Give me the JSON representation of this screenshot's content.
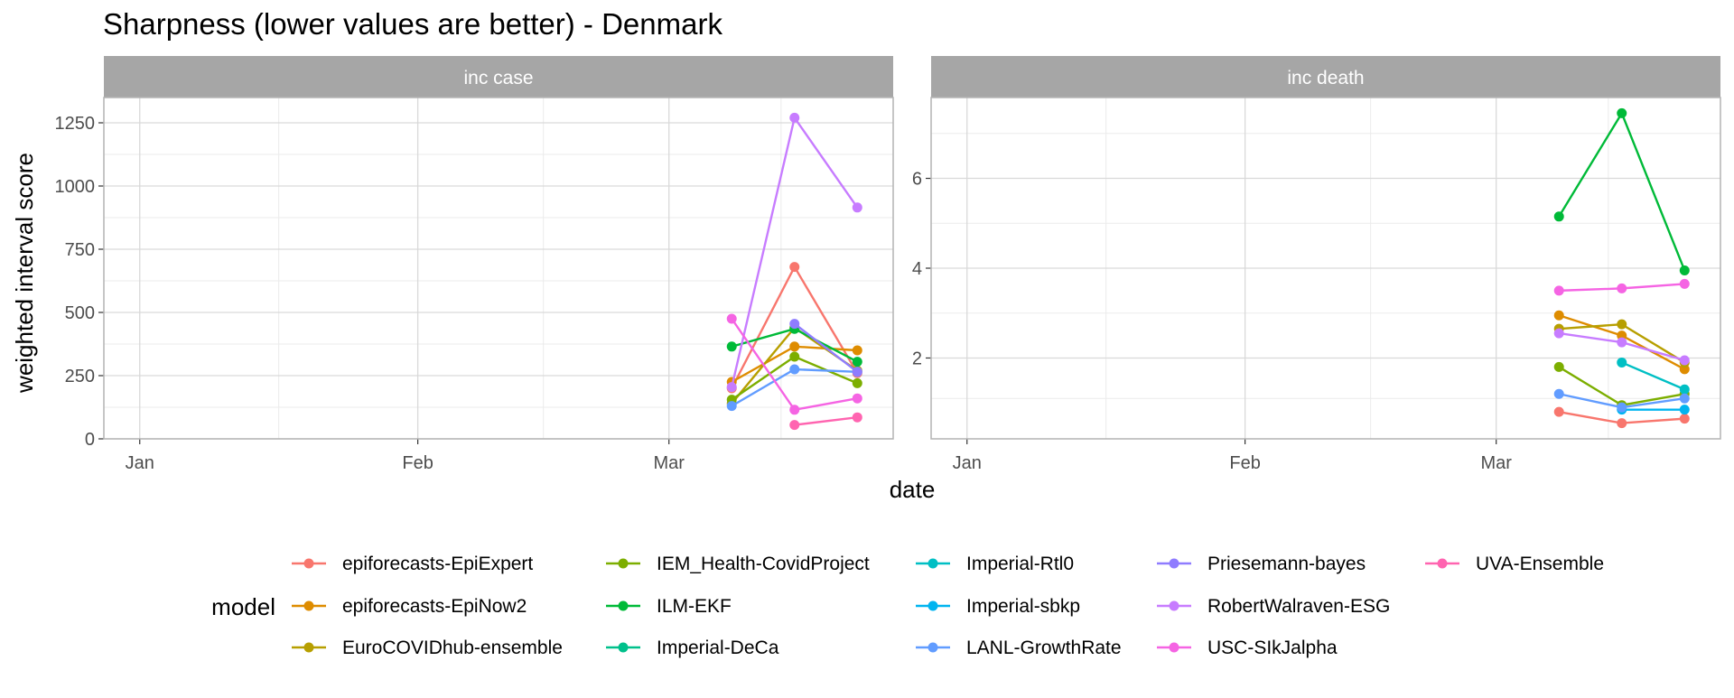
{
  "chart_data": {
    "type": "line",
    "title": "Sharpness (lower values are better) - Denmark",
    "xlabel": "date",
    "ylabel": "weighted interval score",
    "grid": true,
    "legend": {
      "title": "model",
      "position": "bottom"
    },
    "x_ticks": [
      "Jan",
      "Feb",
      "Mar"
    ],
    "x_dates": [
      "2021-03-08",
      "2021-03-15",
      "2021-03-22"
    ],
    "legend_entries": [
      {
        "name": "epiforecasts-EpiExpert",
        "color": "#F8766D"
      },
      {
        "name": "epiforecasts-EpiNow2",
        "color": "#DE8C00"
      },
      {
        "name": "EuroCOVIDhub-ensemble",
        "color": "#B79F00"
      },
      {
        "name": "IEM_Health-CovidProject",
        "color": "#7CAE00"
      },
      {
        "name": "ILM-EKF",
        "color": "#00BA38"
      },
      {
        "name": "Imperial-DeCa",
        "color": "#00C08B"
      },
      {
        "name": "Imperial-Rtl0",
        "color": "#00BFC4"
      },
      {
        "name": "Imperial-sbkp",
        "color": "#00B4F0"
      },
      {
        "name": "LANL-GrowthRate",
        "color": "#619CFF"
      },
      {
        "name": "Priesemann-bayes",
        "color": "#8F7CFF"
      },
      {
        "name": "RobertWalraven-ESG",
        "color": "#C77CFF"
      },
      {
        "name": "USC-SIkJalpha",
        "color": "#F564E3"
      },
      {
        "name": "UVA-Ensemble",
        "color": "#FF64B0"
      }
    ],
    "panels": [
      {
        "strip": "inc case",
        "ylim": [
          0,
          1350
        ],
        "y_ticks": [
          0,
          250,
          500,
          750,
          1000,
          1250
        ],
        "series": [
          {
            "name": "epiforecasts-EpiExpert",
            "color": "#F8766D",
            "values": [
              200,
              680,
              260
            ]
          },
          {
            "name": "epiforecasts-EpiNow2",
            "color": "#DE8C00",
            "values": [
              225,
              365,
              350
            ]
          },
          {
            "name": "EuroCOVIDhub-ensemble",
            "color": "#B79F00",
            "values": [
              140,
              440,
              270
            ]
          },
          {
            "name": "IEM_Health-CovidProject",
            "color": "#7CAE00",
            "values": [
              155,
              325,
              220
            ]
          },
          {
            "name": "ILM-EKF",
            "color": "#00BA38",
            "values": [
              365,
              435,
              305
            ]
          },
          {
            "name": "Imperial-DeCa",
            "color": "#00C08B",
            "values": [
              null,
              null,
              null
            ]
          },
          {
            "name": "Imperial-Rtl0",
            "color": "#00BFC4",
            "values": [
              null,
              null,
              null
            ]
          },
          {
            "name": "Imperial-sbkp",
            "color": "#00B4F0",
            "values": [
              null,
              null,
              null
            ]
          },
          {
            "name": "LANL-GrowthRate",
            "color": "#619CFF",
            "values": [
              130,
              275,
              265
            ]
          },
          {
            "name": "Priesemann-bayes",
            "color": "#8F7CFF",
            "values": [
              null,
              455,
              265
            ]
          },
          {
            "name": "RobertWalraven-ESG",
            "color": "#C77CFF",
            "values": [
              205,
              1270,
              915
            ]
          },
          {
            "name": "USC-SIkJalpha",
            "color": "#F564E3",
            "values": [
              475,
              115,
              160
            ]
          },
          {
            "name": "UVA-Ensemble",
            "color": "#FF64B0",
            "values": [
              null,
              55,
              85
            ]
          }
        ]
      },
      {
        "strip": "inc death",
        "ylim": [
          0.2,
          7.8
        ],
        "y_ticks": [
          2,
          4,
          6
        ],
        "series": [
          {
            "name": "epiforecasts-EpiExpert",
            "color": "#F8766D",
            "values": [
              0.8,
              0.55,
              0.65
            ]
          },
          {
            "name": "epiforecasts-EpiNow2",
            "color": "#DE8C00",
            "values": [
              2.95,
              2.5,
              1.75
            ]
          },
          {
            "name": "EuroCOVIDhub-ensemble",
            "color": "#B79F00",
            "values": [
              2.65,
              2.75,
              1.9
            ]
          },
          {
            "name": "IEM_Health-CovidProject",
            "color": "#7CAE00",
            "values": [
              1.8,
              0.95,
              1.2
            ]
          },
          {
            "name": "ILM-EKF",
            "color": "#00BA38",
            "values": [
              5.15,
              7.45,
              3.95
            ]
          },
          {
            "name": "Imperial-DeCa",
            "color": "#00C08B",
            "values": [
              null,
              null,
              null
            ]
          },
          {
            "name": "Imperial-Rtl0",
            "color": "#00BFC4",
            "values": [
              null,
              1.9,
              1.3
            ]
          },
          {
            "name": "Imperial-sbkp",
            "color": "#00B4F0",
            "values": [
              null,
              0.85,
              0.85
            ]
          },
          {
            "name": "LANL-GrowthRate",
            "color": "#619CFF",
            "values": [
              1.2,
              0.9,
              1.1
            ]
          },
          {
            "name": "Priesemann-bayes",
            "color": "#8F7CFF",
            "values": [
              null,
              null,
              null
            ]
          },
          {
            "name": "RobertWalraven-ESG",
            "color": "#C77CFF",
            "values": [
              2.55,
              2.35,
              1.95
            ]
          },
          {
            "name": "USC-SIkJalpha",
            "color": "#F564E3",
            "values": [
              3.5,
              3.55,
              3.65
            ]
          },
          {
            "name": "UVA-Ensemble",
            "color": "#FF64B0",
            "values": [
              null,
              null,
              null
            ]
          }
        ]
      }
    ]
  }
}
